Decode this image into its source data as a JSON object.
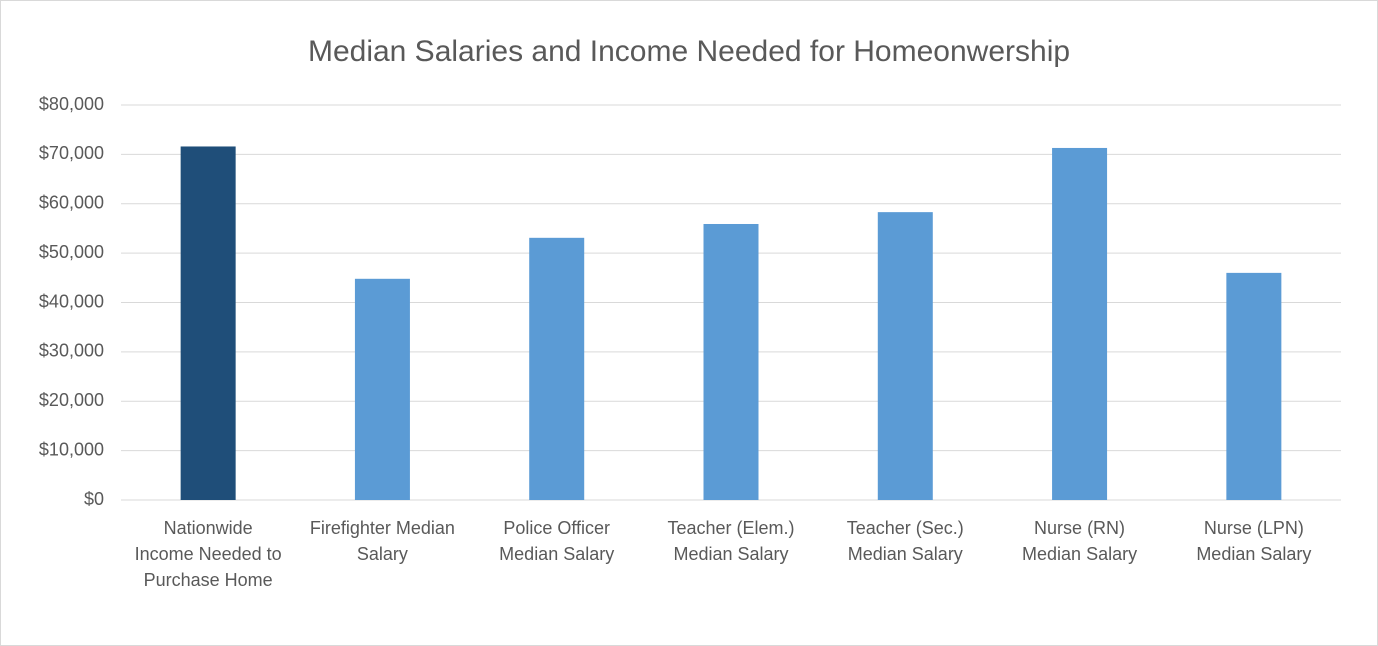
{
  "chart_data": {
    "type": "bar",
    "title": "Median Salaries and Income Needed for Homeonwership",
    "categories": [
      "Nationwide Income Needed to Purchase Home",
      "Firefighter Median Salary",
      "Police Officer Median Salary",
      "Teacher (Elem.) Median Salary",
      "Teacher (Sec.) Median Salary",
      "Nurse (RN) Median Salary",
      "Nurse (LPN) Median Salary"
    ],
    "values": [
      71600,
      44800,
      53100,
      55900,
      58300,
      71300,
      46000
    ],
    "colors": [
      "#1f4e79",
      "#5b9bd5",
      "#5b9bd5",
      "#5b9bd5",
      "#5b9bd5",
      "#5b9bd5",
      "#5b9bd5"
    ],
    "ylim": [
      0,
      80000
    ],
    "yticks": [
      {
        "value": 0,
        "label": "$0"
      },
      {
        "value": 10000,
        "label": "$10,000"
      },
      {
        "value": 20000,
        "label": "$20,000"
      },
      {
        "value": 30000,
        "label": "$30,000"
      },
      {
        "value": 40000,
        "label": "$40,000"
      },
      {
        "value": 50000,
        "label": "$50,000"
      },
      {
        "value": 60000,
        "label": "$60,000"
      },
      {
        "value": 70000,
        "label": "$70,000"
      },
      {
        "value": 80000,
        "label": "$80,000"
      }
    ],
    "grid": true
  }
}
